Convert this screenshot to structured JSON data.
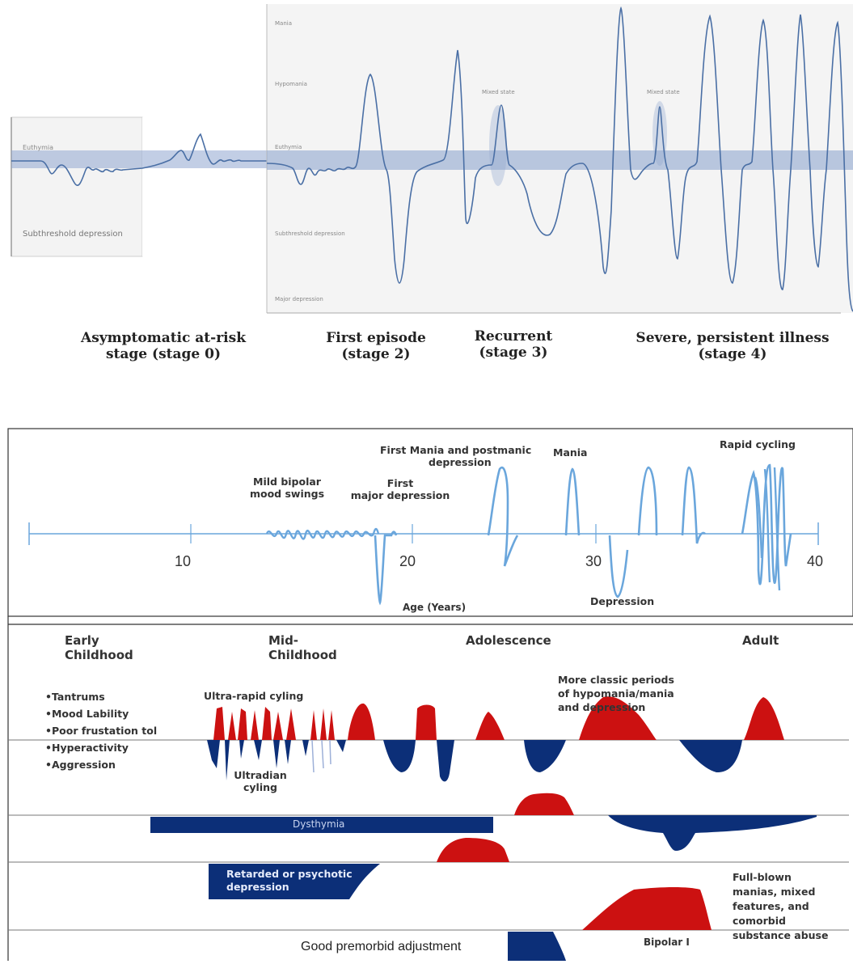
{
  "top_panel": {
    "left_labels": {
      "euthymia": "Euthymia",
      "subthreshold": "Subthreshold depression"
    },
    "right_labels": {
      "mania": "Mania",
      "hypomania": "Hypomania",
      "euthymia": "Euthymia",
      "subthreshold": "Subthreshold depression",
      "major": "Major depression",
      "mixed1": "Mixed state",
      "mixed2": "Mixed state"
    },
    "stages": {
      "s0_line1": "Asymptomatic at-risk",
      "s0_line2": "stage (stage 0)",
      "s2_line1": "First episode",
      "s2_line2": "(stage 2)",
      "s3_line1": "Recurrent",
      "s3_line2": "(stage 3)",
      "s4_line1": "Severe, persistent illness",
      "s4_line2": "(stage 4)"
    },
    "colors": {
      "band": "#8fa6cf",
      "curve": "#4a6fa5"
    }
  },
  "timeline_panel": {
    "ticks": [
      "10",
      "20",
      "30",
      "40"
    ],
    "labels": {
      "mild_line1": "Mild bipolar",
      "mild_line2": "mood swings",
      "first_major_line1": "First",
      "first_major_line2": "major depression",
      "first_mania_line1": "First Mania and postmanic",
      "first_mania_line2": "depression",
      "mania": "Mania",
      "rapid": "Rapid cycling",
      "age": "Age (Years)",
      "depression": "Depression"
    },
    "colors": {
      "line": "#6aa6dc"
    }
  },
  "development_panel": {
    "headers": {
      "early_line1": "Early",
      "early_line2": "Childhood",
      "mid_line1": "Mid-",
      "mid_line2": "Childhood",
      "adolescence": "Adolescence",
      "adult": "Adult"
    },
    "symptoms": [
      "•Tantrums",
      "•Mood Lability",
      "•Poor frustation tol",
      "•Hyperactivity",
      "•Aggression"
    ],
    "labels": {
      "ultra_rapid": "Ultra-rapid cyling",
      "ultradian_line1": "Ultradian",
      "ultradian_line2": "cyling",
      "classic_line1": "More classic periods",
      "classic_line2": "of hypomania/mania",
      "classic_line3": "and depression",
      "dysthymia": "Dysthymia",
      "retarded_line1": "Retarded or psychotic",
      "retarded_line2": "depression",
      "fullblown_line1": "Full-blown",
      "fullblown_line2": "manias, mixed",
      "fullblown_line3": "features, and",
      "fullblown_line4": "comorbid",
      "fullblown_line5": "substance abuse",
      "good": "Good premorbid adjustment",
      "bipolar": "Bipolar I"
    },
    "colors": {
      "mania": "#cc1111",
      "depression": "#0c2f78"
    }
  }
}
